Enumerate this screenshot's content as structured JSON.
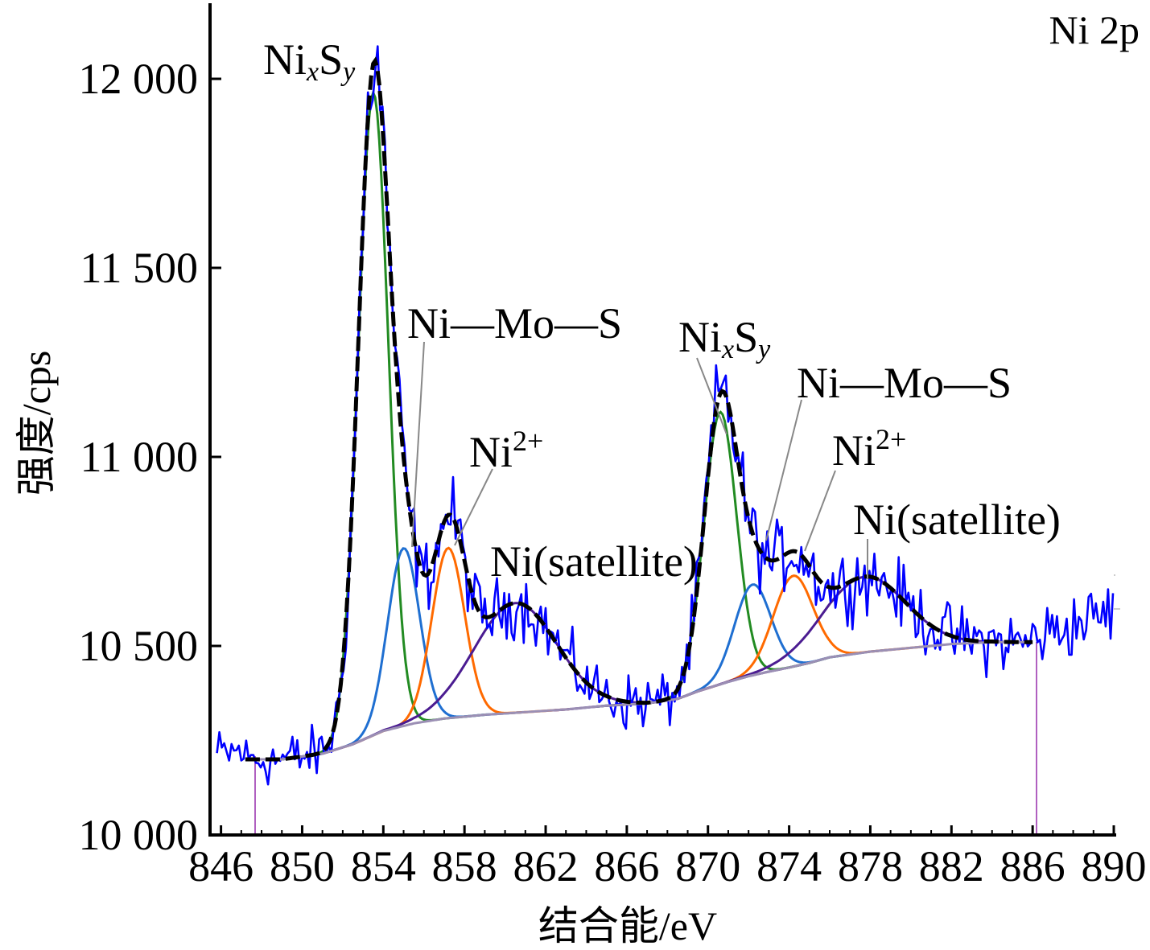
{
  "chart_data": {
    "type": "line",
    "panel_label": "Ni 2p",
    "xlabel": "结合能/eV",
    "ylabel": "强度/cps",
    "xlim": [
      845.5,
      890
    ],
    "ylim": [
      10000,
      12200
    ],
    "xticks": [
      846,
      850,
      854,
      858,
      862,
      866,
      870,
      874,
      878,
      882,
      886,
      890
    ],
    "xtick_labels": [
      "846",
      "850",
      "854",
      "858",
      "862",
      "866",
      "870",
      "874",
      "878",
      "882",
      "886",
      "890"
    ],
    "yticks": [
      10000,
      10500,
      11000,
      11500,
      12000
    ],
    "ytick_labels": [
      "10 000",
      "10 500",
      "11 000",
      "11 500",
      "12 000"
    ],
    "fit_range": [
      847.2,
      886
    ],
    "background": [
      [
        847.2,
        10200
      ],
      [
        849,
        10200
      ],
      [
        851,
        10215
      ],
      [
        852.5,
        10240
      ],
      [
        854,
        10275
      ],
      [
        855.5,
        10295
      ],
      [
        857,
        10308
      ],
      [
        859,
        10318
      ],
      [
        861,
        10325
      ],
      [
        863,
        10332
      ],
      [
        865,
        10342
      ],
      [
        867,
        10348
      ],
      [
        868.5,
        10360
      ],
      [
        869.5,
        10380
      ],
      [
        871,
        10405
      ],
      [
        872,
        10420
      ],
      [
        873,
        10432
      ],
      [
        874,
        10443
      ],
      [
        875,
        10455
      ],
      [
        876,
        10470
      ],
      [
        878,
        10485
      ],
      [
        880,
        10495
      ],
      [
        882,
        10505
      ],
      [
        884,
        10510
      ],
      [
        886,
        10510
      ]
    ],
    "components": [
      {
        "label": "NixSy 2p3/2",
        "color": "#228B22",
        "center": 853.5,
        "fwhm": 1.75,
        "height": 1700
      },
      {
        "label": "Ni—Mo—S 2p3/2",
        "color": "#1f6fd1",
        "center": 855.0,
        "fwhm": 1.85,
        "height": 470
      },
      {
        "label": "Ni2+ 2p3/2",
        "color": "#ff6a00",
        "center": 857.2,
        "fwhm": 1.9,
        "height": 450
      },
      {
        "label": "Ni(satellite) 2p3/2",
        "color": "#4b1c91",
        "center": 860.5,
        "fwhm": 4.8,
        "height": 290
      },
      {
        "label": "NixSy 2p1/2",
        "color": "#228B22",
        "center": 870.6,
        "fwhm": 1.9,
        "height": 720
      },
      {
        "label": "Ni—Mo—S 2p1/2",
        "color": "#1f6fd1",
        "center": 872.2,
        "fwhm": 2.1,
        "height": 240
      },
      {
        "label": "Ni2+ 2p1/2",
        "color": "#ff6a00",
        "center": 874.2,
        "fwhm": 2.3,
        "height": 240
      },
      {
        "label": "Ni(satellite) 2p1/2",
        "color": "#4b1c91",
        "center": 877.7,
        "fwhm": 4.8,
        "height": 200
      }
    ],
    "series": [
      {
        "name": "raw",
        "color": "#0000ff"
      },
      {
        "name": "envelope",
        "color": "#000000"
      }
    ],
    "annotations": [
      {
        "main": "Ni",
        "sub_x": "x",
        "mid": "S",
        "sub_y": "y",
        "target": 853.6
      },
      {
        "text": "Ni—Mo—S",
        "target": 855.0
      },
      {
        "main": "Ni",
        "sup": "2+",
        "target": 857.2
      },
      {
        "text": "Ni(satellite)",
        "target": 860.5
      },
      {
        "main": "Ni",
        "sub_x": "x",
        "mid": "S",
        "sub_y": "y",
        "target": 870.6
      },
      {
        "text": "Ni—Mo—S",
        "target": 872.4
      },
      {
        "main": "Ni",
        "sup": "2+",
        "target": 874.3
      },
      {
        "text": "Ni(satellite)",
        "target": 877.7
      }
    ]
  }
}
